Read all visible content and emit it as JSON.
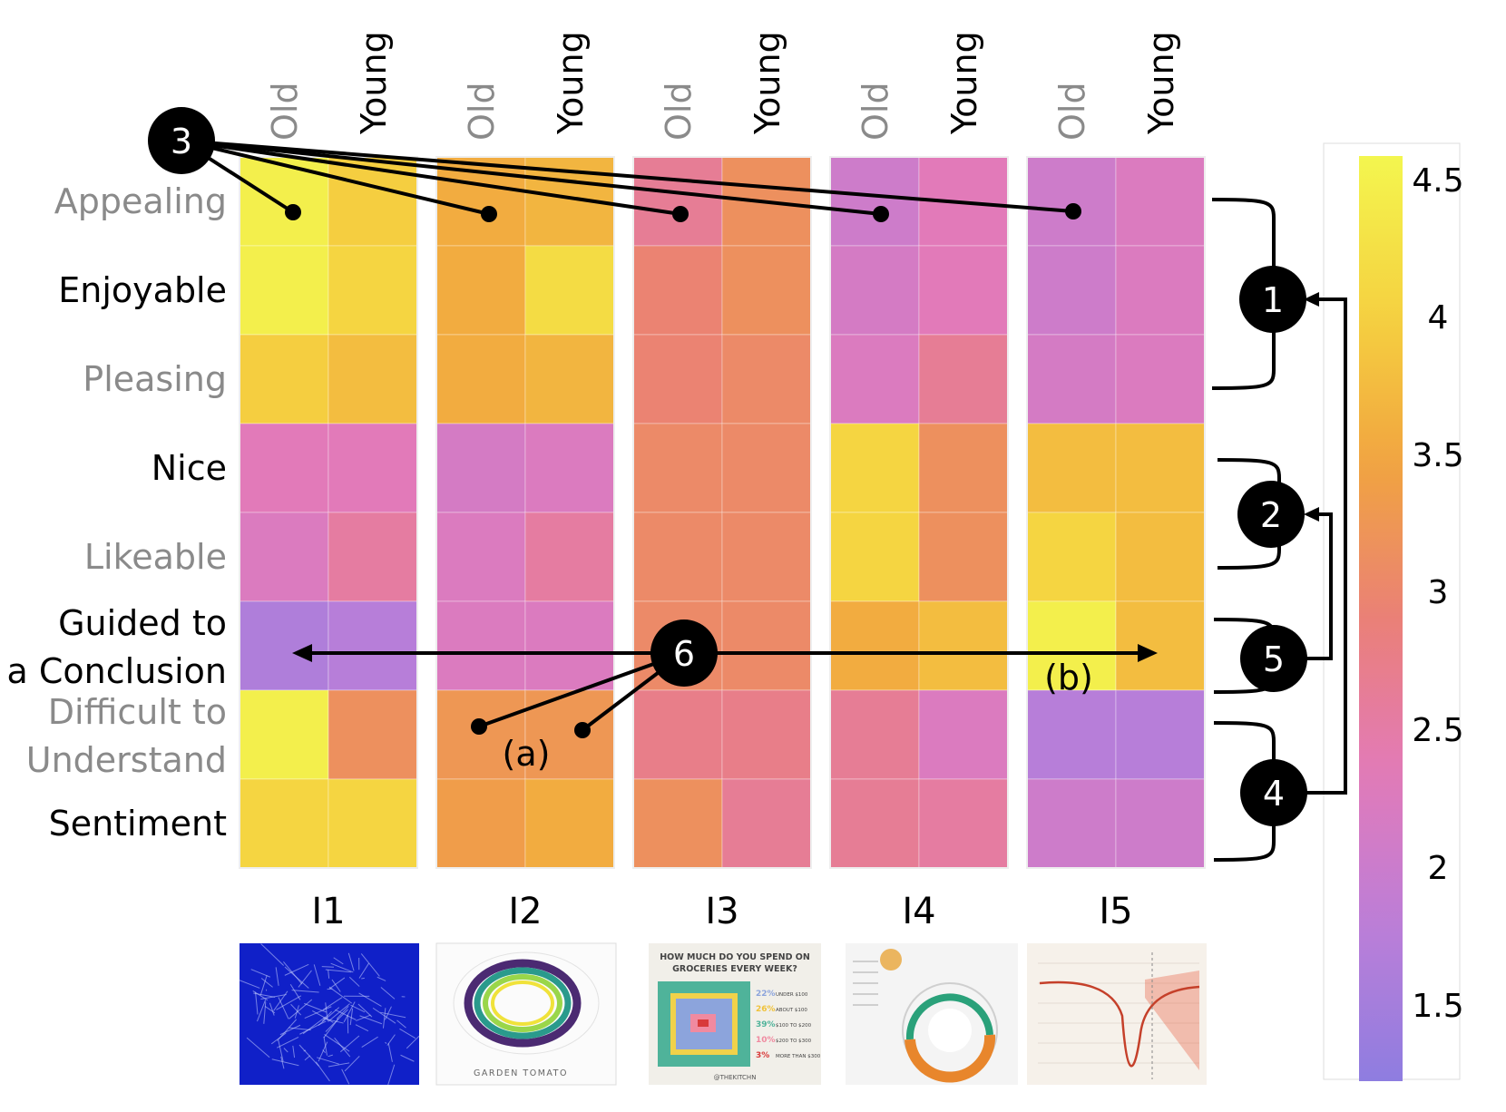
{
  "chart_data": {
    "type": "heatmap",
    "rows": [
      "Appealing",
      "Enjoyable",
      "Pleasing",
      "Nice",
      "Likeable",
      "Guided to a Conclusion",
      "Difficult to Understand",
      "Sentiment"
    ],
    "row_label_lines": [
      [
        "Appealing"
      ],
      [
        "Enjoyable"
      ],
      [
        "Pleasing"
      ],
      [
        "Nice"
      ],
      [
        "Likeable"
      ],
      [
        "Guided to",
        "a Conclusion"
      ],
      [
        "Difficult to",
        "Understand"
      ],
      [
        "Sentiment"
      ]
    ],
    "row_label_gray": [
      true,
      false,
      true,
      false,
      true,
      false,
      true,
      false
    ],
    "groups": [
      "I1",
      "I2",
      "I3",
      "I4",
      "I5"
    ],
    "subcolumns": [
      "Old",
      "Young"
    ],
    "values": [
      [
        [
          4.5,
          4.0
        ],
        [
          3.6,
          3.7
        ],
        [
          2.7,
          3.2
        ],
        [
          2.1,
          2.4
        ],
        [
          2.1,
          2.3
        ]
      ],
      [
        [
          4.5,
          4.1
        ],
        [
          3.6,
          4.2
        ],
        [
          3.0,
          3.2
        ],
        [
          2.2,
          2.4
        ],
        [
          2.1,
          2.3
        ]
      ],
      [
        [
          4.0,
          3.8
        ],
        [
          3.6,
          3.7
        ],
        [
          3.0,
          3.1
        ],
        [
          2.3,
          2.7
        ],
        [
          2.2,
          2.3
        ]
      ],
      [
        [
          2.4,
          2.4
        ],
        [
          2.2,
          2.3
        ],
        [
          3.1,
          3.1
        ],
        [
          4.1,
          3.2
        ],
        [
          3.8,
          3.8
        ]
      ],
      [
        [
          2.3,
          2.6
        ],
        [
          2.3,
          2.6
        ],
        [
          3.1,
          3.1
        ],
        [
          4.1,
          3.2
        ],
        [
          4.1,
          3.8
        ]
      ],
      [
        [
          1.7,
          1.8
        ],
        [
          2.3,
          2.3
        ],
        [
          3.1,
          3.1
        ],
        [
          3.6,
          3.8
        ],
        [
          4.5,
          3.8
        ]
      ],
      [
        [
          4.5,
          3.2
        ],
        [
          3.3,
          3.3
        ],
        [
          2.8,
          2.8
        ],
        [
          2.7,
          2.3
        ],
        [
          1.8,
          1.8
        ]
      ],
      [
        [
          4.1,
          4.1
        ],
        [
          3.4,
          3.6
        ],
        [
          3.2,
          2.7
        ],
        [
          2.7,
          2.6
        ],
        [
          2.1,
          2.1
        ]
      ]
    ],
    "colorbar": {
      "min": 1.3,
      "max": 4.6,
      "ticks": [
        "4.5",
        "4",
        "3.5",
        "3",
        "2.5",
        "2",
        "1.5"
      ]
    },
    "palette": [
      "#8e7de0",
      "#bb7ed8",
      "#e27ab9",
      "#ea8077",
      "#f1a440",
      "#f5d240",
      "#f3f64f"
    ],
    "annotations": {
      "circles": [
        "1",
        "2",
        "3",
        "4",
        "5",
        "6"
      ],
      "labels": [
        "(a)",
        "(b)"
      ]
    },
    "images": [
      {
        "name": "I1"
      },
      {
        "name": "I2",
        "caption": "GARDEN TOMATO"
      },
      {
        "name": "I3",
        "title_line1": "HOW MUCH DO YOU SPEND ON",
        "title_line2": "GROCERIES EVERY WEEK?",
        "footer": "@THEKITCHN",
        "legend": [
          {
            "pct": "22%",
            "label": "UNDER $100"
          },
          {
            "pct": "26%",
            "label": "ABOUT $100"
          },
          {
            "pct": "39%",
            "label": "$100 TO $200"
          },
          {
            "pct": "10%",
            "label": "$200 TO $300"
          },
          {
            "pct": "3%",
            "label": "MORE THAN $300"
          }
        ]
      },
      {
        "name": "I4"
      },
      {
        "name": "I5"
      }
    ]
  }
}
